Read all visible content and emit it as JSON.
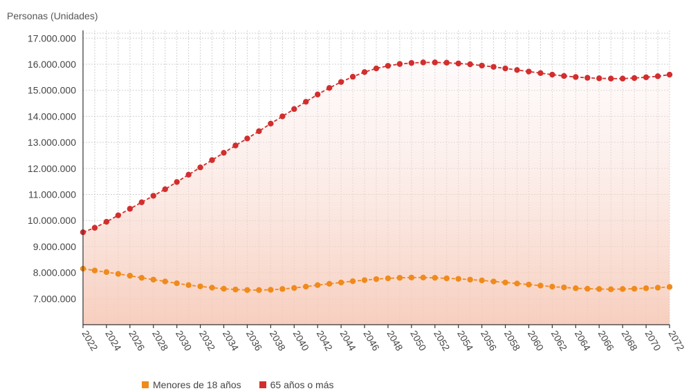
{
  "chart_data": {
    "type": "line",
    "ylabel": "Personas (Unidades)",
    "ylim": [
      6000000,
      17300000
    ],
    "yticks": [
      {
        "value": 7000000,
        "label": "7.000.000"
      },
      {
        "value": 8000000,
        "label": "8.000.000"
      },
      {
        "value": 9000000,
        "label": "9.000.000"
      },
      {
        "value": 10000000,
        "label": "10.000.000"
      },
      {
        "value": 11000000,
        "label": "11.000.000"
      },
      {
        "value": 12000000,
        "label": "12.000.000"
      },
      {
        "value": 13000000,
        "label": "13.000.000"
      },
      {
        "value": 14000000,
        "label": "14.000.000"
      },
      {
        "value": 15000000,
        "label": "15.000.000"
      },
      {
        "value": 16000000,
        "label": "16.000.000"
      },
      {
        "value": 17000000,
        "label": "17.000.000"
      }
    ],
    "xticks": [
      "2022",
      "2024",
      "2026",
      "2028",
      "2030",
      "2032",
      "2034",
      "2036",
      "2038",
      "2040",
      "2042",
      "2044",
      "2046",
      "2048",
      "2050",
      "2052",
      "2054",
      "2056",
      "2058",
      "2060",
      "2062",
      "2064",
      "2066",
      "2068",
      "2070",
      "2072"
    ],
    "x": [
      2022,
      2023,
      2024,
      2025,
      2026,
      2027,
      2028,
      2029,
      2030,
      2031,
      2032,
      2033,
      2034,
      2035,
      2036,
      2037,
      2038,
      2039,
      2040,
      2041,
      2042,
      2043,
      2044,
      2045,
      2046,
      2047,
      2048,
      2049,
      2050,
      2051,
      2052,
      2053,
      2054,
      2055,
      2056,
      2057,
      2058,
      2059,
      2060,
      2061,
      2062,
      2063,
      2064,
      2065,
      2066,
      2067,
      2068,
      2069,
      2070,
      2071,
      2072
    ],
    "grid": true,
    "legend_position": "bottom",
    "series": [
      {
        "name": "Menores de 18 años",
        "color": "#f08a1c",
        "values": [
          8150000,
          8080000,
          8020000,
          7950000,
          7880000,
          7800000,
          7730000,
          7660000,
          7590000,
          7520000,
          7470000,
          7420000,
          7380000,
          7350000,
          7330000,
          7330000,
          7340000,
          7370000,
          7410000,
          7460000,
          7520000,
          7570000,
          7620000,
          7670000,
          7710000,
          7750000,
          7780000,
          7800000,
          7810000,
          7810000,
          7800000,
          7780000,
          7760000,
          7730000,
          7700000,
          7660000,
          7620000,
          7580000,
          7540000,
          7500000,
          7460000,
          7430000,
          7400000,
          7380000,
          7370000,
          7360000,
          7370000,
          7380000,
          7400000,
          7420000,
          7450000
        ]
      },
      {
        "name": "65 años o más",
        "color": "#d22e2e",
        "values": [
          9550000,
          9720000,
          9950000,
          10200000,
          10450000,
          10700000,
          10950000,
          11200000,
          11480000,
          11760000,
          12040000,
          12320000,
          12600000,
          12880000,
          13150000,
          13430000,
          13720000,
          14000000,
          14280000,
          14560000,
          14840000,
          15090000,
          15320000,
          15520000,
          15700000,
          15840000,
          15940000,
          16010000,
          16050000,
          16070000,
          16070000,
          16060000,
          16030000,
          16000000,
          15950000,
          15900000,
          15840000,
          15780000,
          15720000,
          15660000,
          15600000,
          15550000,
          15510000,
          15480000,
          15460000,
          15450000,
          15450000,
          15470000,
          15500000,
          15540000,
          15600000
        ]
      }
    ]
  }
}
